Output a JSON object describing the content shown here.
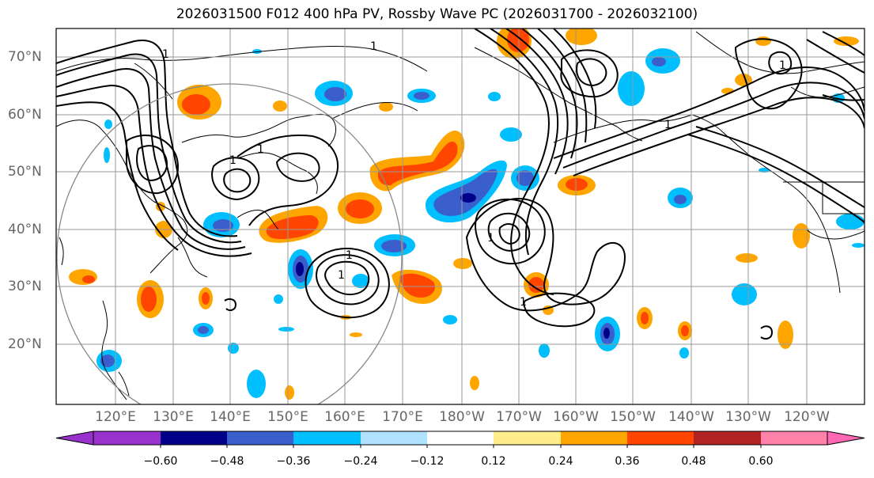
{
  "title": "2026031500 F012 400 hPa PV, Rossby Wave PC (2026031700 - 2026032100)",
  "map": {
    "lat_labels": [
      "70°N",
      "60°N",
      "50°N",
      "40°N",
      "30°N",
      "20°N"
    ],
    "lon_labels": [
      "120°E",
      "130°E",
      "140°E",
      "150°E",
      "160°E",
      "170°E",
      "180°W",
      "170°W",
      "160°W",
      "150°W",
      "140°W",
      "130°W",
      "120°W"
    ],
    "contour_label": "1",
    "colors": {
      "frame": "#000000",
      "grid": "#999999",
      "coast": "#000000",
      "ring": "#888888"
    }
  },
  "colorbar": {
    "ticks": [
      "−0.60",
      "−0.48",
      "−0.36",
      "−0.24",
      "−0.12",
      "0.12",
      "0.24",
      "0.36",
      "0.48",
      "0.60"
    ],
    "colors": [
      "#9932cc",
      "#00008b",
      "#3a5fcd",
      "#00bfff",
      "#b0e2ff",
      "#ffffff",
      "#ffec8b",
      "#ffa500",
      "#ff4500",
      "#b22222",
      "#ff82ab",
      "#ff69b4"
    ]
  }
}
